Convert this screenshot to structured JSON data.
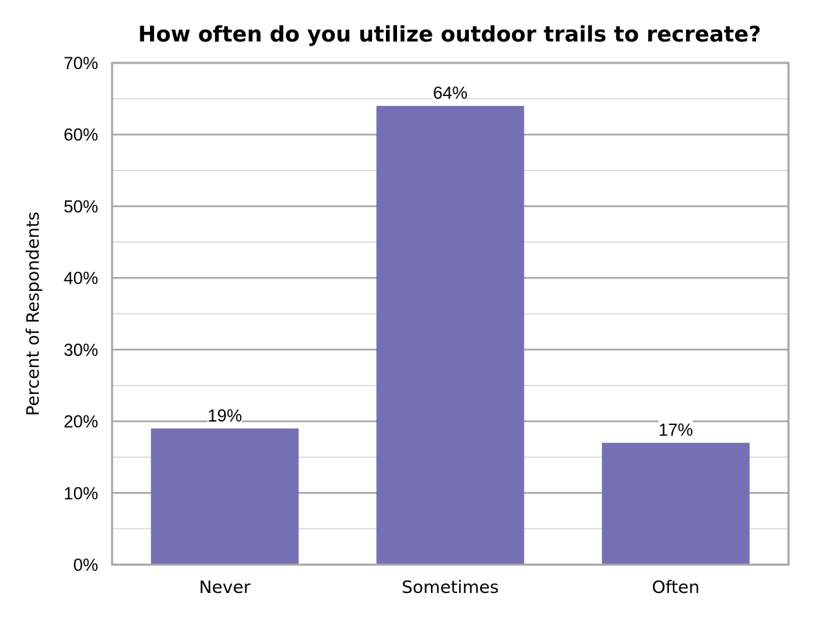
{
  "chart_data": {
    "type": "bar",
    "title": "How often do you utilize outdoor trails to recreate?",
    "xlabel": "",
    "ylabel": "Percent of Respondents",
    "categories": [
      "Never",
      "Sometimes",
      "Often"
    ],
    "values": [
      19,
      64,
      17
    ],
    "data_labels": [
      "19%",
      "64%",
      "17%"
    ],
    "ylim": [
      0,
      70
    ],
    "yticks": [
      0,
      10,
      20,
      30,
      40,
      50,
      60,
      70
    ],
    "ytick_labels": [
      "0%",
      "10%",
      "20%",
      "30%",
      "40%",
      "50%",
      "60%",
      "70%"
    ],
    "minor_gridlines": [
      5,
      15,
      25,
      35,
      45,
      55,
      65
    ],
    "grid": true,
    "legend": "none",
    "colors": {
      "bar": "#7570B3",
      "grid": "#C0C0C0",
      "axis": "#A6A6A6"
    }
  }
}
